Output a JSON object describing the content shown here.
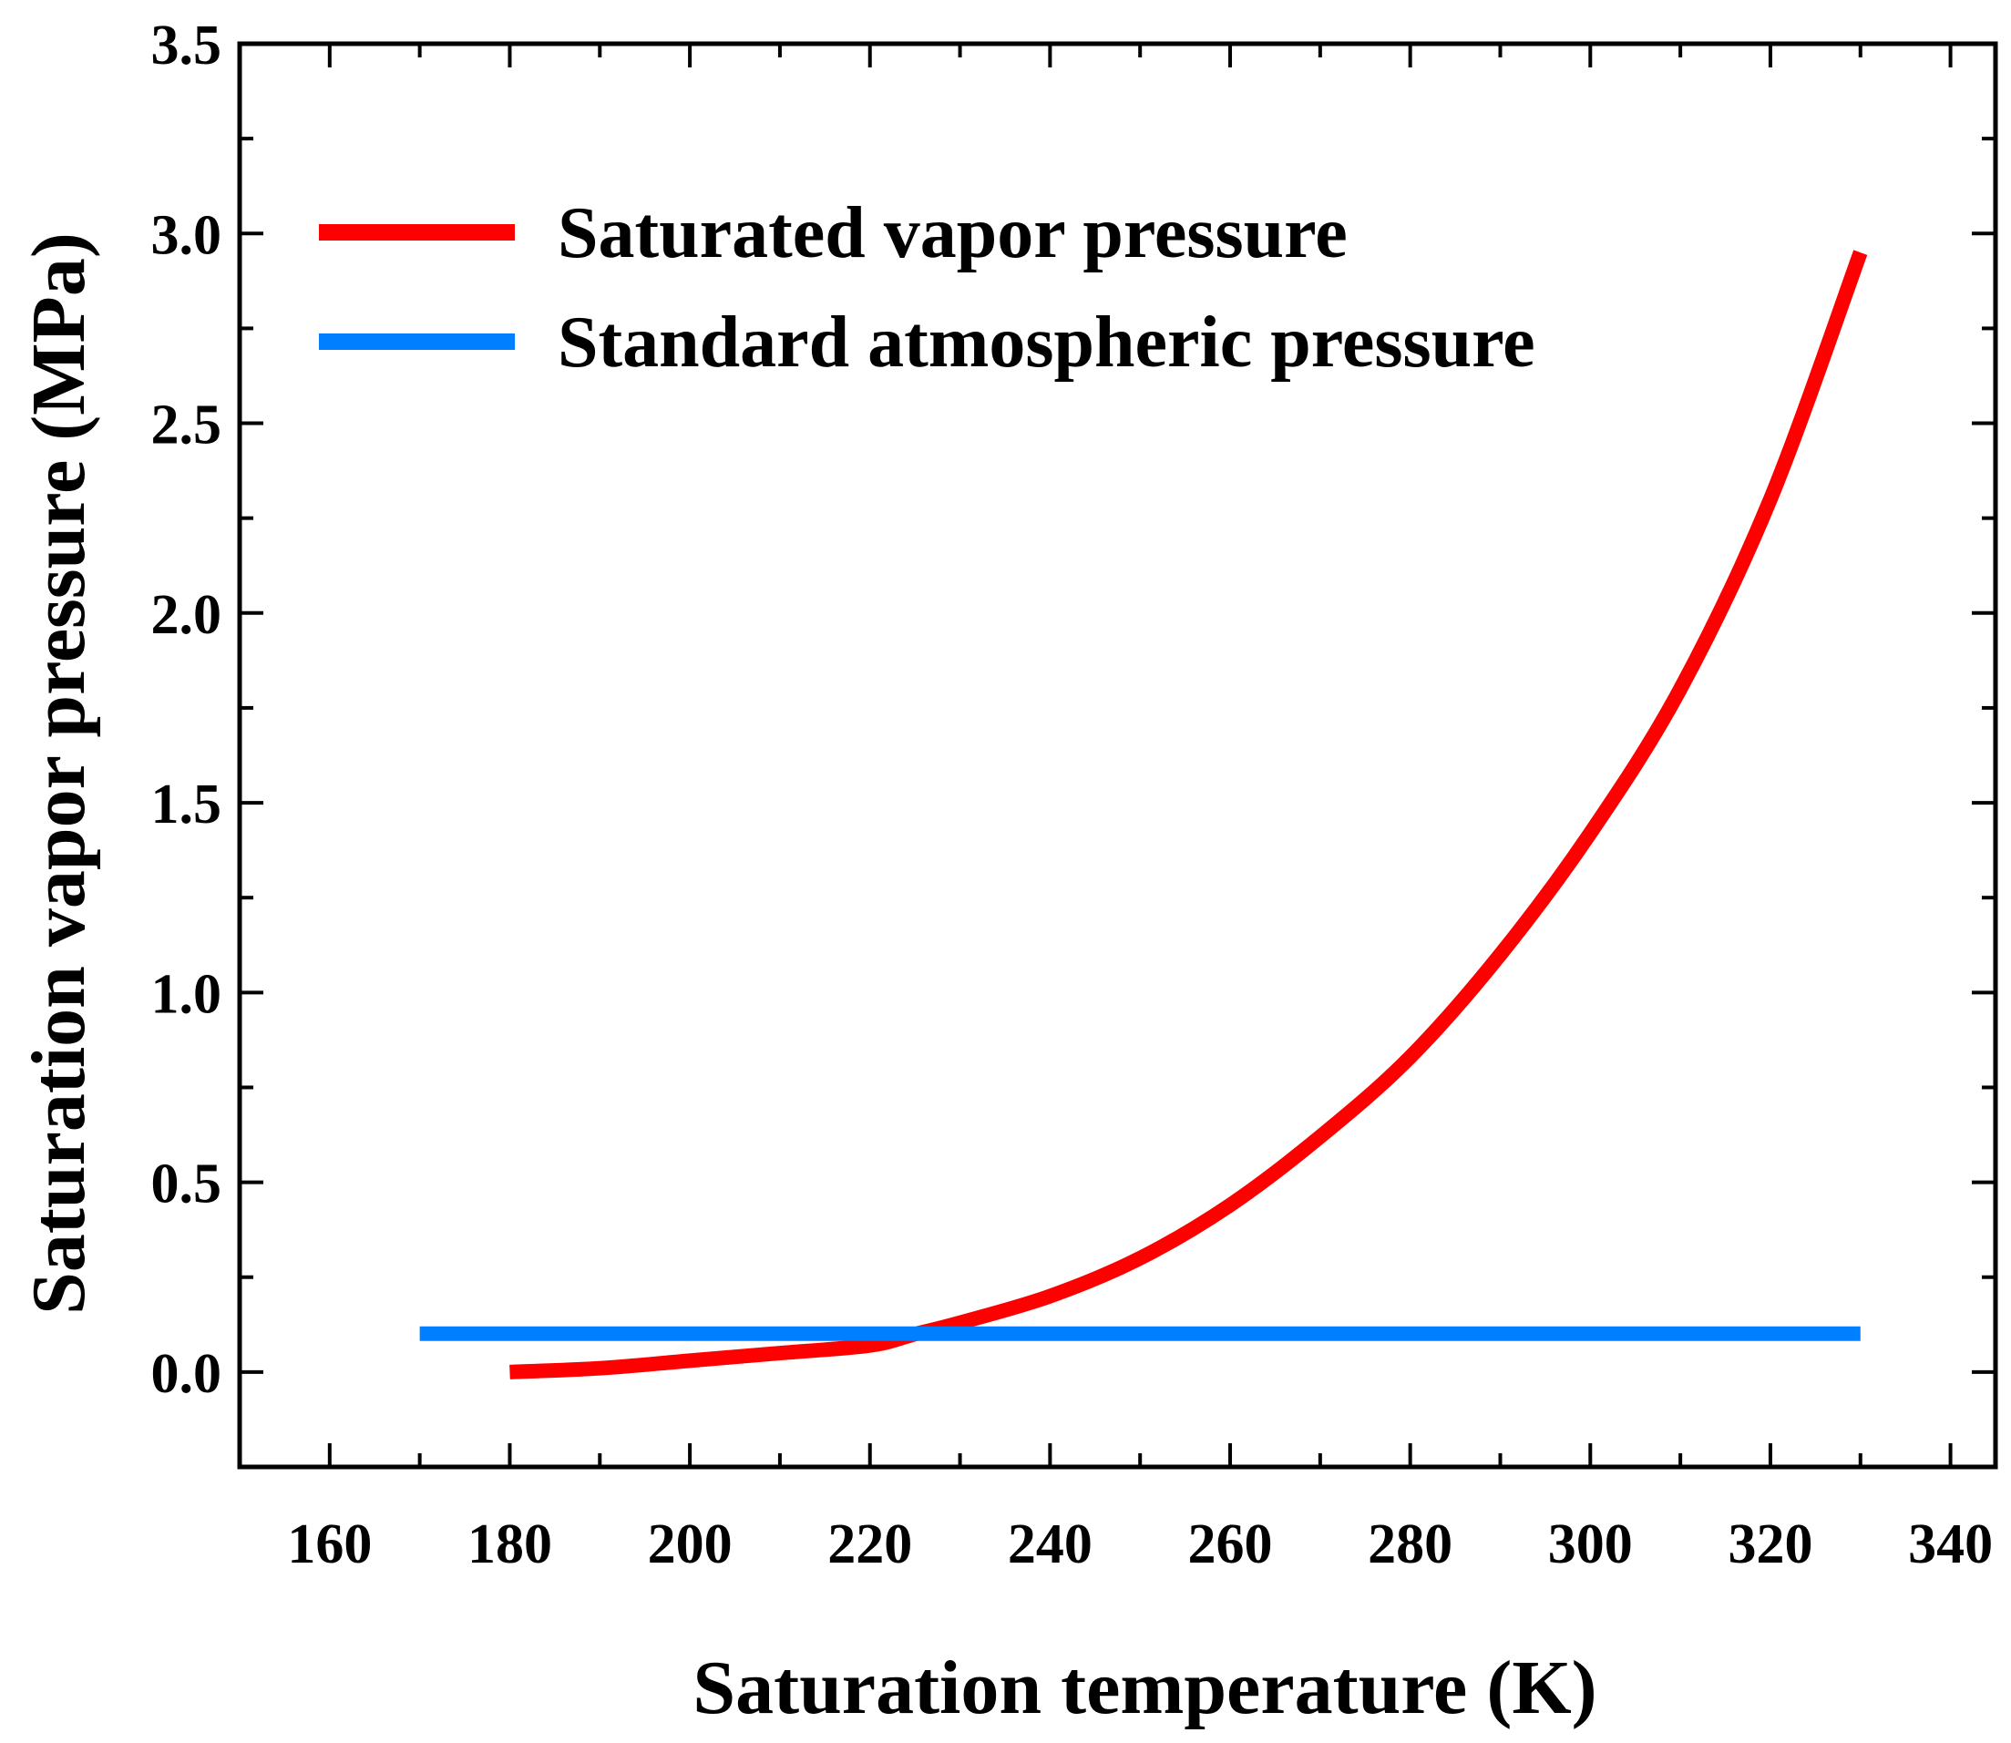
{
  "chart_data": {
    "type": "line",
    "title": "",
    "xlabel": "Saturation temperature (K)",
    "ylabel": "Saturation vapor pressure (MPa)",
    "xlim": [
      150,
      345
    ],
    "ylim": [
      -0.25,
      3.5
    ],
    "x_ticks": [
      160,
      180,
      200,
      220,
      240,
      260,
      280,
      300,
      320,
      340
    ],
    "x_tick_labels": [
      "160",
      "180",
      "200",
      "220",
      "240",
      "260",
      "280",
      "300",
      "320",
      "340"
    ],
    "y_ticks": [
      0.0,
      0.5,
      1.0,
      1.5,
      2.0,
      2.5,
      3.0,
      3.5
    ],
    "y_tick_labels": [
      "0.0",
      "0.5",
      "1.0",
      "1.5",
      "2.0",
      "2.5",
      "3.0",
      "3.5"
    ],
    "grid": false,
    "legend_position": "top-left",
    "series": [
      {
        "name": "Saturated vapor pressure",
        "color": "#ff0000",
        "x": [
          180,
          190,
          200,
          210,
          220,
          225,
          230,
          240,
          250,
          260,
          270,
          280,
          290,
          300,
          310,
          320,
          330
        ],
        "y": [
          0.0,
          0.01,
          0.03,
          0.05,
          0.07,
          0.1,
          0.13,
          0.2,
          0.3,
          0.44,
          0.62,
          0.83,
          1.1,
          1.42,
          1.8,
          2.3,
          2.95
        ]
      },
      {
        "name": "Standard atmospheric pressure",
        "color": "#0080ff",
        "x": [
          170,
          330
        ],
        "y": [
          0.101,
          0.101
        ]
      }
    ]
  }
}
